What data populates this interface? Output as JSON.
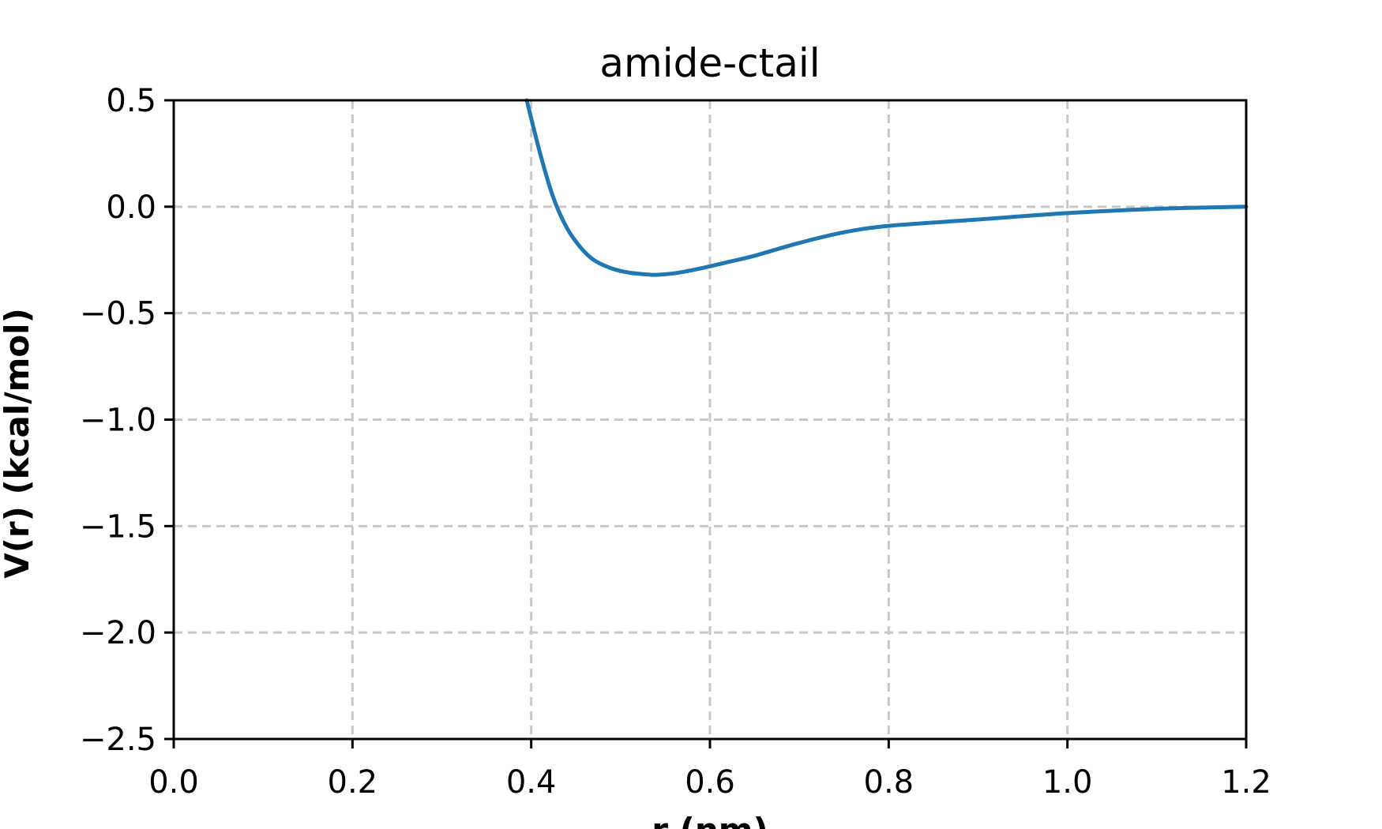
{
  "chart_data": {
    "type": "line",
    "title": "amide-ctail",
    "xlabel": "r (nm)",
    "ylabel": "V(r) (kcal/mol)",
    "xlim": [
      0.0,
      1.2
    ],
    "ylim": [
      -2.5,
      0.5
    ],
    "xticks": [
      0.0,
      0.2,
      0.4,
      0.6,
      0.8,
      1.0,
      1.2
    ],
    "xtick_labels": [
      "0.0",
      "0.2",
      "0.4",
      "0.6",
      "0.8",
      "1.0",
      "1.2"
    ],
    "yticks": [
      0.5,
      0.0,
      -0.5,
      -1.0,
      -1.5,
      -2.0,
      -2.5
    ],
    "ytick_labels": [
      "0.5",
      "0.0",
      "−0.5",
      "−1.0",
      "−1.5",
      "−2.0",
      "−2.5"
    ],
    "grid": true,
    "series": [
      {
        "color": "#1f77b4",
        "x": [
          0.395,
          0.41,
          0.425,
          0.44,
          0.455,
          0.47,
          0.49,
          0.51,
          0.53,
          0.54,
          0.56,
          0.58,
          0.6,
          0.62,
          0.65,
          0.7,
          0.75,
          0.8,
          0.9,
          1.0,
          1.1,
          1.2
        ],
        "y": [
          0.5,
          0.25,
          0.04,
          -0.1,
          -0.19,
          -0.25,
          -0.29,
          -0.31,
          -0.318,
          -0.32,
          -0.313,
          -0.298,
          -0.28,
          -0.26,
          -0.23,
          -0.17,
          -0.12,
          -0.09,
          -0.06,
          -0.03,
          -0.01,
          0.0
        ]
      }
    ]
  }
}
